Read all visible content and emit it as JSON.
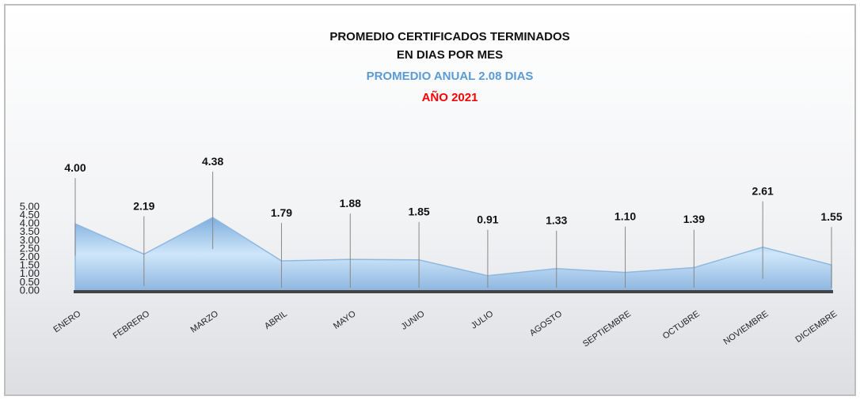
{
  "chart_data": {
    "type": "area",
    "title": [
      "PROMEDIO CERTIFICADOS TERMINADOS",
      "EN DIAS POR MES"
    ],
    "subtitle": "PROMEDIO ANUAL 2.08 DIAS",
    "annotation": "AÑO 2021",
    "categories": [
      "ENERO",
      "FEBRERO",
      "MARZO",
      "ABRIL",
      "MAYO",
      "JUNIO",
      "JULIO",
      "AGOSTO",
      "SEPTIEMBRE",
      "OCTUBRE",
      "NOVIEMBRE",
      "DICIEMBRE"
    ],
    "values": [
      4.0,
      2.19,
      4.38,
      1.79,
      1.88,
      1.85,
      0.91,
      1.33,
      1.1,
      1.39,
      2.61,
      1.55
    ],
    "value_labels": [
      "4.00",
      "2.19",
      "4.38",
      "1.79",
      "1.88",
      "1.85",
      "0.91",
      "1.33",
      "1.10",
      "1.39",
      "2.61",
      "1.55"
    ],
    "color": "#8fb8e0",
    "subtitle_color": "#5b9bd5",
    "annotation_color": "#ff0000",
    "ylim": [
      0,
      5
    ],
    "yticks": [
      {
        "value": 0,
        "label": "0.00"
      },
      {
        "value": 0.5,
        "label": "0.50"
      },
      {
        "value": 1,
        "label": "1.00"
      },
      {
        "value": 1.5,
        "label": "1.50"
      },
      {
        "value": 2,
        "label": "2.00"
      },
      {
        "value": 2.5,
        "label": "2.50"
      },
      {
        "value": 3,
        "label": "3.00"
      },
      {
        "value": 3.5,
        "label": "3.50"
      },
      {
        "value": 4,
        "label": "4.00"
      },
      {
        "value": 4.5,
        "label": "4.50"
      },
      {
        "value": 5,
        "label": "5.00"
      }
    ]
  }
}
